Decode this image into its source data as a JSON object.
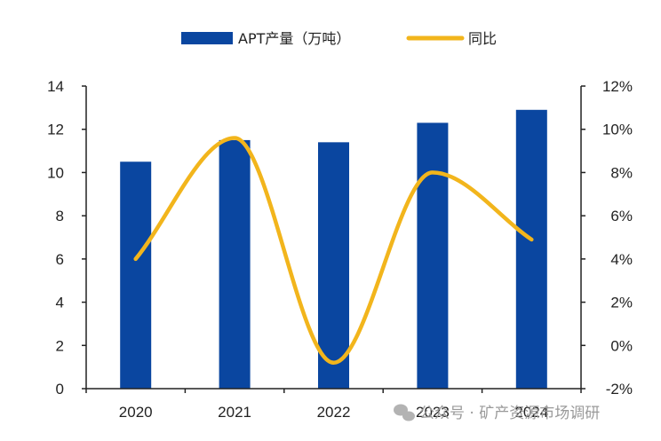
{
  "chart_data": {
    "type": "bar",
    "categories": [
      "2020",
      "2021",
      "2022",
      "2023",
      "2024"
    ],
    "series": [
      {
        "name": "APT产量（万吨）",
        "type": "bar",
        "axis": "left",
        "values": [
          10.5,
          11.5,
          11.4,
          12.3,
          12.9
        ],
        "color": "#0a46a0"
      },
      {
        "name": "同比",
        "type": "line",
        "axis": "right",
        "smooth": true,
        "values": [
          4.0,
          9.6,
          -0.8,
          8.0,
          4.9
        ],
        "color": "#f2b51c"
      }
    ],
    "y_left": {
      "min": 0,
      "max": 14,
      "step": 2,
      "tick_labels": [
        "0",
        "2",
        "4",
        "6",
        "8",
        "10",
        "12",
        "14"
      ]
    },
    "y_right": {
      "min": -2,
      "max": 12,
      "step": 2,
      "tick_labels": [
        "-2%",
        "0%",
        "2%",
        "4%",
        "6%",
        "8%",
        "10%",
        "12%"
      ]
    },
    "legend_position": "top-center",
    "grid": false
  },
  "watermark": {
    "text": "公众号 · 矿产资源市场调研"
  }
}
